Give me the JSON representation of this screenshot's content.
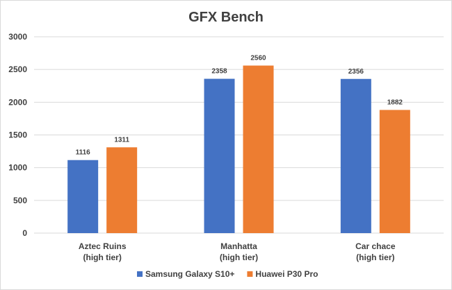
{
  "chart_data": {
    "type": "bar",
    "title": "GFX Bench",
    "categories": [
      [
        "Aztec Ruins",
        "(high tier)"
      ],
      [
        "Manhatta",
        "(high tier)"
      ],
      [
        "Car chace",
        "(high tier)"
      ]
    ],
    "series": [
      {
        "name": "Samsung Galaxy S10+",
        "values": [
          1116,
          2358,
          2356
        ],
        "color": "#4472C4"
      },
      {
        "name": "Huawei P30 Pro",
        "values": [
          1311,
          2560,
          1882
        ],
        "color": "#ED7D31"
      }
    ],
    "y_ticks": [
      0,
      500,
      1000,
      1500,
      2000,
      2500,
      3000
    ],
    "ylim": [
      0,
      3000
    ],
    "grid": true,
    "legend_position": "bottom",
    "data_labels": true
  }
}
